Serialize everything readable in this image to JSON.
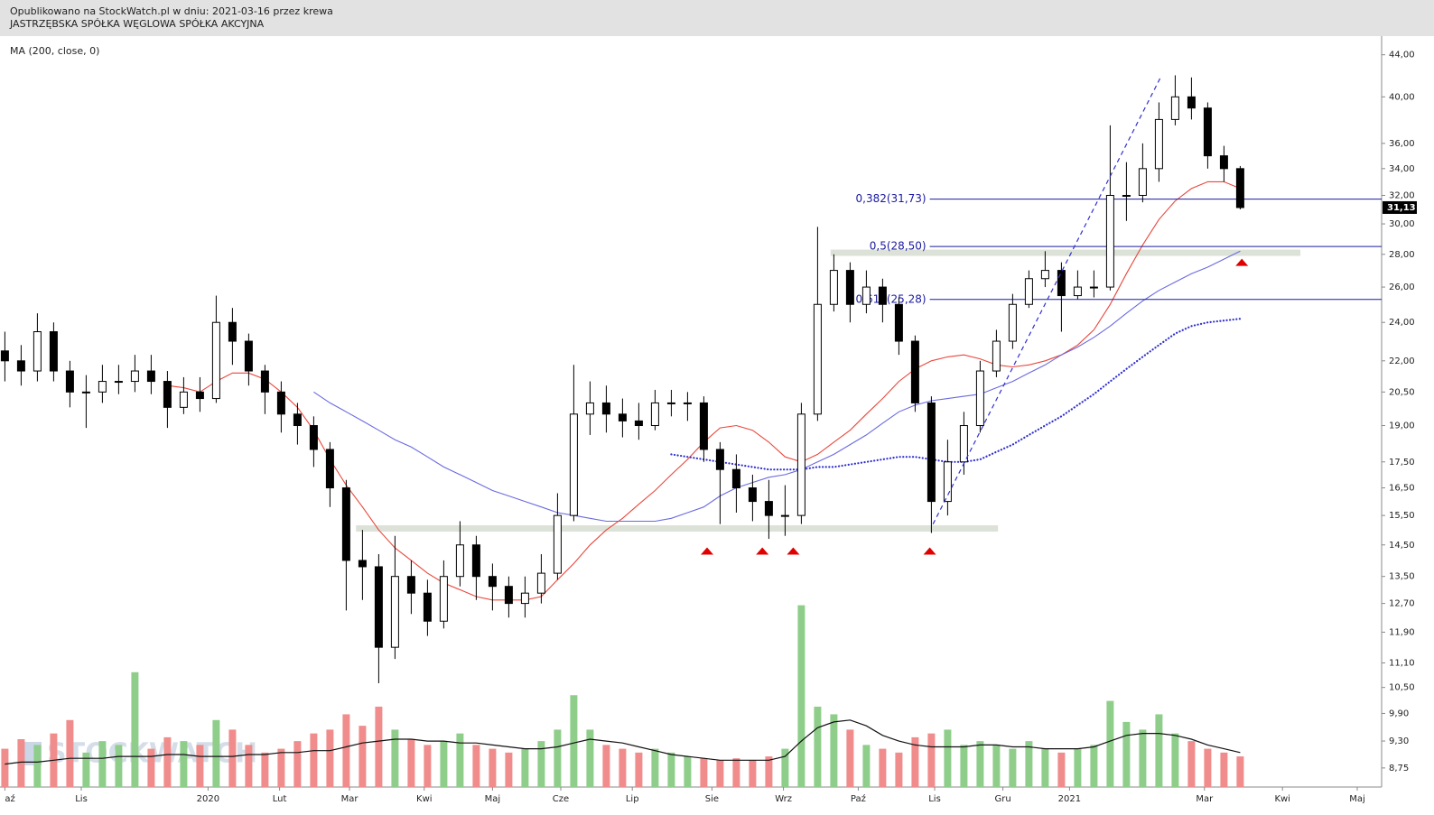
{
  "header": {
    "line1": "Opublikowano na StockWatch.pl w dniu: 2021-03-16 przez krewa",
    "line2": "JASTRZĘBSKA SPÓŁKA WĘGLOWA SPÓŁKA AKCYJNA"
  },
  "chart_data": {
    "type": "candlestick",
    "indicator_label": "MA (200, close, 0)",
    "watermark": "STOCKWATCH",
    "log_scale": true,
    "up_color": "#ffffff",
    "down_color": "#000000",
    "x": [
      0,
      1,
      2,
      3,
      4,
      5,
      6,
      7,
      8,
      9,
      10,
      11,
      12,
      13,
      14,
      15,
      16,
      17,
      18,
      19,
      20,
      21,
      22,
      23,
      24,
      25,
      26,
      27,
      28,
      29,
      30,
      31,
      32,
      33,
      34,
      35,
      36,
      37,
      38,
      39,
      40,
      41,
      42,
      43,
      44,
      45,
      46,
      47,
      48,
      49,
      50,
      51,
      52,
      53,
      54,
      55,
      56,
      57,
      58,
      59,
      60,
      61,
      62,
      63,
      64,
      65,
      66,
      67,
      68,
      69,
      70,
      71,
      72,
      73,
      74,
      75,
      76
    ],
    "open": [
      22.5,
      22,
      21.5,
      23.5,
      21.5,
      20.5,
      20.5,
      21,
      21,
      21.5,
      21,
      19.8,
      20.5,
      20.2,
      24,
      23,
      21.5,
      20.5,
      19.5,
      19,
      18,
      16.5,
      14,
      13.8,
      11.5,
      13.5,
      13,
      12.2,
      13.5,
      14.5,
      13.5,
      13.2,
      12.7,
      13,
      13.6,
      15.5,
      19.5,
      20,
      19.5,
      19.2,
      19,
      20,
      20,
      20,
      18,
      17.2,
      16.5,
      16,
      15.5,
      15.5,
      19.5,
      25,
      27,
      25,
      26,
      25,
      23,
      20,
      16,
      17.5,
      19,
      21.5,
      23,
      25,
      26.5,
      27,
      25.5,
      26,
      26,
      32,
      32,
      34,
      38,
      40,
      39,
      35,
      34
    ],
    "high": [
      23.5,
      22.8,
      24.5,
      24,
      22,
      21.3,
      21.8,
      21.8,
      22.3,
      22.3,
      21.5,
      21.2,
      21.2,
      25.5,
      24.8,
      23.4,
      21.8,
      21,
      20,
      19.4,
      18.3,
      16.8,
      15,
      14.2,
      14.8,
      14,
      13.4,
      14,
      15.3,
      14.8,
      13.9,
      13.5,
      13.5,
      14.2,
      16.3,
      21.8,
      21,
      20.8,
      20.2,
      20,
      20.6,
      20.6,
      20.5,
      20.3,
      18.3,
      17.8,
      17,
      16.8,
      16.6,
      20,
      29.8,
      28,
      27.5,
      27,
      26.5,
      25.4,
      23.3,
      20.3,
      18.4,
      19.6,
      22,
      23.6,
      25.6,
      27,
      28.2,
      27.5,
      27,
      27,
      37.5,
      34.5,
      36,
      39.5,
      42,
      41.8,
      39.5,
      35.8,
      34.2
    ],
    "low": [
      21,
      20.8,
      21,
      21,
      19.8,
      18.9,
      20,
      20.4,
      20.5,
      20.4,
      18.9,
      19.5,
      19.6,
      20,
      21.8,
      20.8,
      19.5,
      18.7,
      18.2,
      17.3,
      15.8,
      12.5,
      12.8,
      10.6,
      11.2,
      12.4,
      11.8,
      12,
      13.2,
      12.8,
      12.5,
      12.3,
      12.3,
      12.7,
      13.4,
      15.3,
      18.6,
      18.7,
      18.5,
      18.4,
      18.8,
      19.4,
      19.2,
      17.5,
      15.2,
      15.6,
      15.3,
      14.7,
      14.8,
      15.2,
      19.2,
      24.6,
      24,
      24.5,
      24,
      22.3,
      19.6,
      14.9,
      15.5,
      17,
      18.7,
      21.2,
      22.6,
      24.8,
      26,
      23.5,
      25.3,
      25.4,
      25.8,
      30.2,
      31.5,
      33,
      37.5,
      38,
      34,
      33,
      31
    ],
    "close": [
      22,
      21.5,
      23.5,
      21.5,
      20.5,
      20.5,
      21,
      21,
      21.5,
      21,
      19.8,
      20.5,
      20.2,
      24,
      23,
      21.5,
      20.5,
      19.5,
      19,
      18,
      16.5,
      14,
      13.8,
      11.5,
      13.5,
      13,
      12.2,
      13.5,
      14.5,
      13.5,
      13.2,
      12.7,
      13,
      13.6,
      15.5,
      19.5,
      20,
      19.5,
      19.2,
      19,
      20,
      20,
      20,
      18,
      17.2,
      16.5,
      16,
      15.5,
      15.5,
      19.5,
      25,
      27,
      25,
      26,
      25,
      23,
      20,
      16,
      17.5,
      19,
      21.5,
      23,
      25,
      26.5,
      27,
      25.5,
      26,
      26,
      32,
      32,
      34,
      38,
      40,
      39,
      35,
      34,
      31.13
    ],
    "xlim": [
      -0.3,
      84.7
    ],
    "xticks": [
      {
        "value": 0,
        "label": "aź"
      },
      {
        "value": 4.7,
        "label": "Lis"
      },
      {
        "value": 12.5,
        "label": "2020"
      },
      {
        "value": 16.9,
        "label": "Lut"
      },
      {
        "value": 21.2,
        "label": "Mar"
      },
      {
        "value": 25.8,
        "label": "Kwi"
      },
      {
        "value": 30,
        "label": "Maj"
      },
      {
        "value": 34.2,
        "label": "Cze"
      },
      {
        "value": 38.6,
        "label": "Lip"
      },
      {
        "value": 43.5,
        "label": "Sie"
      },
      {
        "value": 47.9,
        "label": "Wrz"
      },
      {
        "value": 52.5,
        "label": "Paź"
      },
      {
        "value": 57.2,
        "label": "Lis"
      },
      {
        "value": 61.4,
        "label": "Gru"
      },
      {
        "value": 65.5,
        "label": "2021"
      },
      {
        "value": 73.8,
        "label": "Mar"
      },
      {
        "value": 78.6,
        "label": "Kwi"
      },
      {
        "value": 83.2,
        "label": "Maj"
      }
    ],
    "ylim": [
      8.38,
      45.9
    ],
    "yticks": [
      {
        "value": 44,
        "label": "44,00"
      },
      {
        "value": 40,
        "label": "40,00"
      },
      {
        "value": 36,
        "label": "36,00"
      },
      {
        "value": 34,
        "label": "34,00"
      },
      {
        "value": 32,
        "label": "32,00"
      },
      {
        "value": 30,
        "label": "30,00"
      },
      {
        "value": 28,
        "label": "28,00"
      },
      {
        "value": 26,
        "label": "26,00"
      },
      {
        "value": 24,
        "label": "24,00"
      },
      {
        "value": 22,
        "label": "22,00"
      },
      {
        "value": 20.5,
        "label": "20,50"
      },
      {
        "value": 19,
        "label": "19,00"
      },
      {
        "value": 17.5,
        "label": "17,50"
      },
      {
        "value": 16.5,
        "label": "16,50"
      },
      {
        "value": 15.5,
        "label": "15,50"
      },
      {
        "value": 14.5,
        "label": "14,50"
      },
      {
        "value": 13.5,
        "label": "13,50"
      },
      {
        "value": 12.7,
        "label": "12,70"
      },
      {
        "value": 11.9,
        "label": "11,90"
      },
      {
        "value": 11.1,
        "label": "11,10"
      },
      {
        "value": 10.5,
        "label": "10,50"
      },
      {
        "value": 9.9,
        "label": "9,90"
      },
      {
        "value": 9.3,
        "label": "9,30"
      },
      {
        "value": 8.75,
        "label": "8,75"
      }
    ],
    "last_price": {
      "value": 31.13,
      "label": "31,13"
    },
    "moving_averages": [
      {
        "color": "#e8473c",
        "style": "solid",
        "values": [
          null,
          null,
          null,
          null,
          null,
          null,
          null,
          null,
          null,
          null,
          20.8,
          20.7,
          20.5,
          21.0,
          21.4,
          21.4,
          21.1,
          20.5,
          19.8,
          18.8,
          17.6,
          16.6,
          15.8,
          15.0,
          14.4,
          14.0,
          13.6,
          13.3,
          13.1,
          12.9,
          12.8,
          12.8,
          12.8,
          12.9,
          13.4,
          13.9,
          14.5,
          15.0,
          15.4,
          15.9,
          16.4,
          17.0,
          17.6,
          18.3,
          18.9,
          19.0,
          18.8,
          18.3,
          17.7,
          17.5,
          17.8,
          18.3,
          18.8,
          19.5,
          20.2,
          21.0,
          21.6,
          22.0,
          22.2,
          22.3,
          22.1,
          21.8,
          21.7,
          21.8,
          22.0,
          22.3,
          22.8,
          23.6,
          25.0,
          26.8,
          28.6,
          30.3,
          31.6,
          32.5,
          33.0,
          33.0,
          32.5
        ]
      },
      {
        "color": "#6a6ae0",
        "style": "solid",
        "values": [
          null,
          null,
          null,
          null,
          null,
          null,
          null,
          null,
          null,
          null,
          null,
          null,
          null,
          null,
          null,
          null,
          null,
          null,
          null,
          20.5,
          20.0,
          19.6,
          19.2,
          18.8,
          18.4,
          18.1,
          17.7,
          17.3,
          17.0,
          16.7,
          16.4,
          16.2,
          16.0,
          15.8,
          15.6,
          15.5,
          15.4,
          15.3,
          15.3,
          15.3,
          15.3,
          15.4,
          15.6,
          15.8,
          16.2,
          16.5,
          16.7,
          16.9,
          17.0,
          17.2,
          17.5,
          17.8,
          18.2,
          18.6,
          19.1,
          19.6,
          19.9,
          20.1,
          20.2,
          20.3,
          20.4,
          20.7,
          21.0,
          21.4,
          21.8,
          22.3,
          22.7,
          23.2,
          23.8,
          24.5,
          25.2,
          25.8,
          26.3,
          26.8,
          27.2,
          27.7,
          28.2
        ]
      },
      {
        "color": "#3030d0",
        "style": "dotted",
        "values": [
          null,
          null,
          null,
          null,
          null,
          null,
          null,
          null,
          null,
          null,
          null,
          null,
          null,
          null,
          null,
          null,
          null,
          null,
          null,
          null,
          null,
          null,
          null,
          null,
          null,
          null,
          null,
          null,
          null,
          null,
          null,
          null,
          null,
          null,
          null,
          null,
          null,
          null,
          null,
          null,
          null,
          17.8,
          17.7,
          17.6,
          17.5,
          17.4,
          17.3,
          17.2,
          17.2,
          17.2,
          17.3,
          17.3,
          17.4,
          17.5,
          17.6,
          17.7,
          17.7,
          17.6,
          17.5,
          17.5,
          17.6,
          17.9,
          18.2,
          18.6,
          19.0,
          19.4,
          19.9,
          20.4,
          21.0,
          21.6,
          22.2,
          22.8,
          23.4,
          23.8,
          24.0,
          24.1,
          24.2
        ]
      }
    ],
    "fib_levels": [
      {
        "value": 31.73,
        "label": "0,382(31,73)"
      },
      {
        "value": 28.5,
        "label": "0,5(28,50)"
      },
      {
        "value": 25.28,
        "label": "0,618(25,28)"
      }
    ],
    "fib_x_start": 56.9,
    "fib_color": "#1a1aa0",
    "zones": [
      {
        "value": 15.05,
        "x": [
          21.6,
          61.1
        ]
      },
      {
        "value": 28.1,
        "x": [
          50.8,
          79.7
        ]
      }
    ],
    "zone_color": "#dde2d8",
    "trend_line": {
      "x": [
        57.1,
        71.1
      ],
      "y": [
        15.2,
        41.8
      ],
      "color": "#3030d0"
    },
    "signals": {
      "x": [
        43.2,
        46.6,
        48.5,
        56.9,
        76.1
      ],
      "y": [
        14.3,
        14.3,
        14.3,
        14.3,
        27.5
      ],
      "color": "#e00000"
    },
    "volume": {
      "ylim": [
        0,
        100
      ],
      "up_color": "#8fce8a",
      "down_color": "#f08c8c",
      "values": [
        20,
        25,
        22,
        28,
        35,
        18,
        24,
        22,
        60,
        20,
        26,
        24,
        22,
        35,
        30,
        22,
        18,
        20,
        24,
        28,
        30,
        38,
        32,
        42,
        30,
        25,
        22,
        24,
        28,
        22,
        20,
        18,
        20,
        24,
        30,
        48,
        30,
        22,
        20,
        18,
        20,
        18,
        16,
        15,
        14,
        15,
        14,
        16,
        20,
        95,
        42,
        38,
        30,
        22,
        20,
        18,
        26,
        28,
        30,
        22,
        24,
        22,
        20,
        24,
        20,
        18,
        20,
        22,
        45,
        34,
        30,
        38,
        28,
        24,
        20,
        18,
        16
      ],
      "ma": [
        12,
        13,
        13,
        14,
        15,
        15,
        15,
        16,
        16,
        16,
        17,
        17,
        16,
        16,
        16,
        17,
        17,
        18,
        18,
        19,
        19,
        21,
        23,
        24,
        25,
        25,
        24,
        24,
        23,
        23,
        22,
        21,
        20,
        20,
        21,
        23,
        25,
        24,
        23,
        21,
        19,
        17,
        16,
        15,
        14,
        14,
        14,
        14,
        16,
        24,
        31,
        34,
        35,
        32,
        27,
        24,
        22,
        21,
        21,
        21,
        22,
        22,
        21,
        21,
        20,
        20,
        20,
        21,
        24,
        27,
        28,
        28,
        27,
        25,
        22,
        20,
        18
      ]
    }
  }
}
